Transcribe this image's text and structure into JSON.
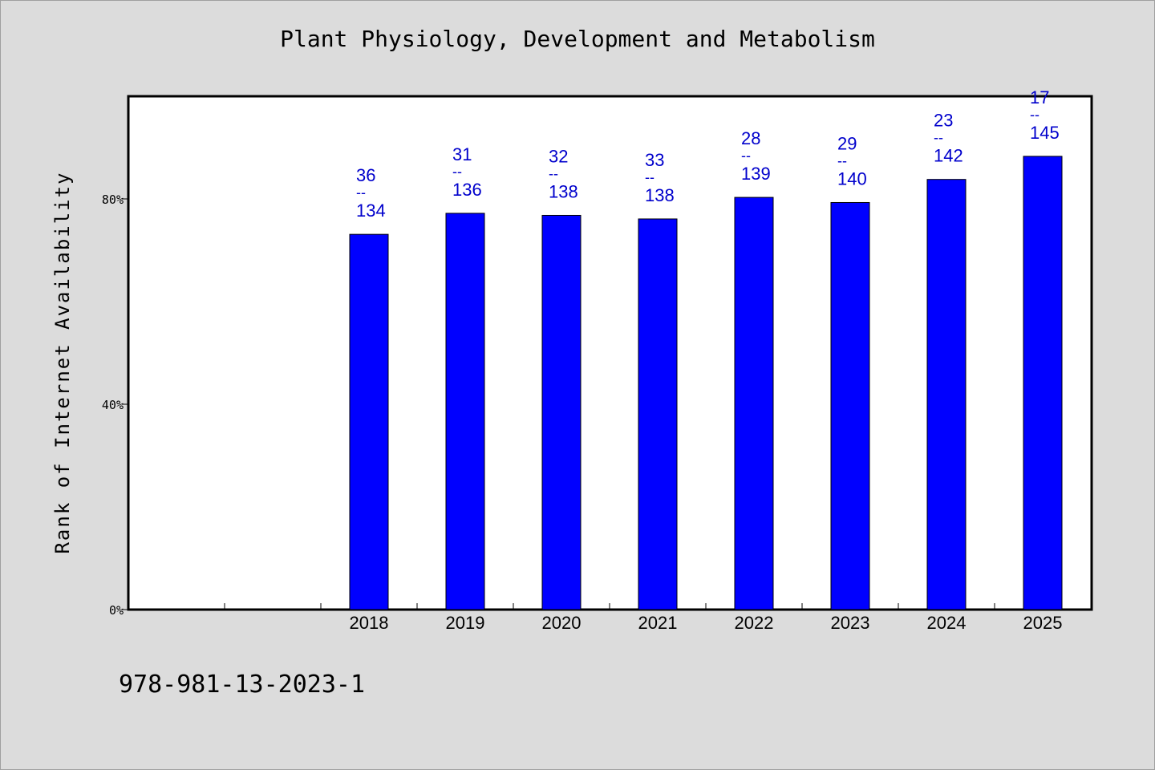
{
  "colors": {
    "background": "#dcdcdc",
    "plot_background": "#ffffff",
    "bar": "#0000ff",
    "label": "#0000cc",
    "axis": "#000000"
  },
  "isbn": "978-981-13-2023-1",
  "chart_data": {
    "type": "bar",
    "title": "Plant Physiology, Development and Metabolism",
    "ylabel": "Rank of Internet Availability",
    "xlabel": "",
    "ylim": [
      0,
      100
    ],
    "yticks": [
      {
        "value": 0,
        "label": "0%"
      },
      {
        "value": 40,
        "label": "40%"
      },
      {
        "value": 80,
        "label": "80%"
      }
    ],
    "grid": false,
    "x_slots": [
      "",
      "",
      "2018",
      "2019",
      "2020",
      "2021",
      "2022",
      "2023",
      "2024",
      "2025"
    ],
    "categories": [
      "2018",
      "2019",
      "2020",
      "2021",
      "2022",
      "2023",
      "2024",
      "2025"
    ],
    "values": [
      73.1,
      77.2,
      76.8,
      76.1,
      80.3,
      79.3,
      83.8,
      88.3
    ],
    "rank": [
      36,
      31,
      32,
      33,
      28,
      29,
      23,
      17
    ],
    "total": [
      134,
      136,
      138,
      138,
      139,
      140,
      142,
      145
    ],
    "label_separator": "--"
  }
}
